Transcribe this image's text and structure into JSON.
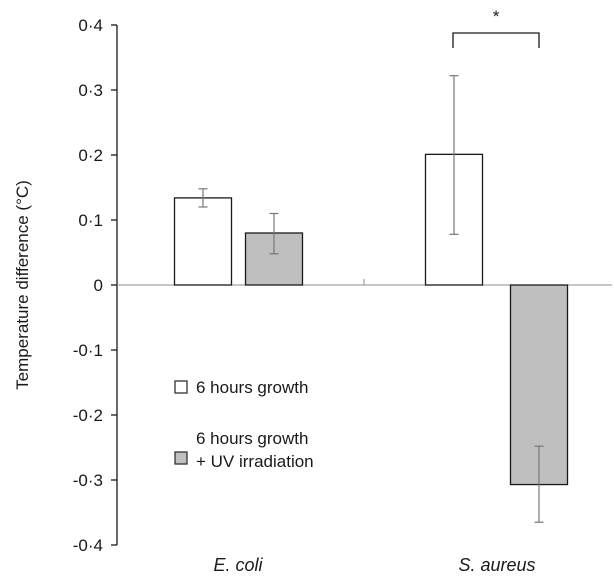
{
  "chart_data": {
    "type": "bar",
    "title": "",
    "ylabel": "Temperature difference (°C)",
    "xlabel": "",
    "ylim": [
      -0.4,
      0.4
    ],
    "yticks": [
      0.4,
      0.3,
      0.2,
      0.1,
      0,
      -0.1,
      -0.2,
      -0.3,
      -0.4
    ],
    "ytick_labels": [
      "0·4",
      "0·3",
      "0·2",
      "0·1",
      "0",
      "-0·1",
      "-0·2",
      "-0·3",
      "-0·4"
    ],
    "categories": [
      "E. coli",
      "S. aureus"
    ],
    "series": [
      {
        "name": "6 hours growth",
        "color": "#ffffff",
        "values": [
          0.134,
          0.201
        ],
        "error_low": [
          0.12,
          0.078
        ],
        "error_high": [
          0.148,
          0.322
        ]
      },
      {
        "name": "6 hours growth + UV irradiation",
        "color": "#bfbfbf",
        "values": [
          0.08,
          -0.307
        ],
        "error_low": [
          0.048,
          -0.365
        ],
        "error_high": [
          0.11,
          -0.248
        ]
      }
    ],
    "legend": {
      "position": "lower-left",
      "entries": [
        "6 hours growth",
        "6 hours growth",
        "+ UV irradiation"
      ]
    },
    "annotations": [
      {
        "text": "*",
        "between": "S. aureus series"
      }
    ],
    "grid": false
  }
}
